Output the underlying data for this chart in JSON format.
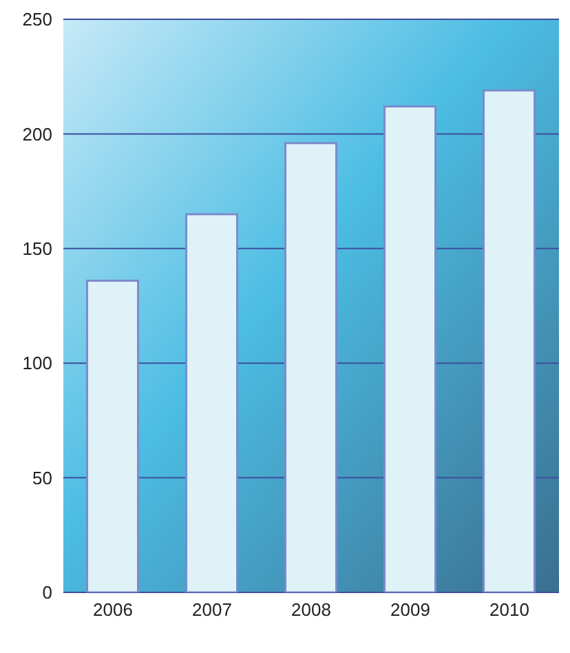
{
  "chart_data": {
    "type": "bar",
    "categories": [
      "2006",
      "2007",
      "2008",
      "2009",
      "2010"
    ],
    "values": [
      136,
      165,
      196,
      212,
      219
    ],
    "color": "#dff2f8",
    "ylim": [
      0,
      250
    ],
    "yticks": [
      0,
      50,
      100,
      150,
      200,
      250
    ],
    "grid": "y"
  }
}
